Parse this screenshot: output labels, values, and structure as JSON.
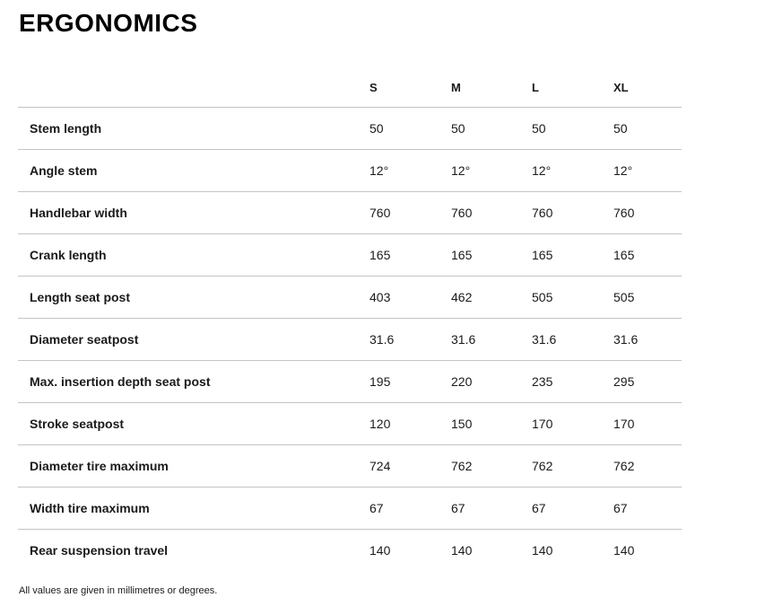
{
  "page": {
    "title": "ERGONOMICS",
    "footnote": "All values are given in millimetres or degrees."
  },
  "table": {
    "columns": [
      "S",
      "M",
      "L",
      "XL"
    ],
    "rows": [
      {
        "label": "Stem length",
        "values": [
          "50",
          "50",
          "50",
          "50"
        ]
      },
      {
        "label": "Angle stem",
        "values": [
          "12°",
          "12°",
          "12°",
          "12°"
        ]
      },
      {
        "label": "Handlebar width",
        "values": [
          "760",
          "760",
          "760",
          "760"
        ]
      },
      {
        "label": "Crank length",
        "values": [
          "165",
          "165",
          "165",
          "165"
        ]
      },
      {
        "label": "Length seat post",
        "values": [
          "403",
          "462",
          "505",
          "505"
        ]
      },
      {
        "label": "Diameter seatpost",
        "values": [
          "31.6",
          "31.6",
          "31.6",
          "31.6"
        ]
      },
      {
        "label": "Max. insertion depth seat post",
        "values": [
          "195",
          "220",
          "235",
          "295"
        ]
      },
      {
        "label": "Stroke seatpost",
        "values": [
          "120",
          "150",
          "170",
          "170"
        ]
      },
      {
        "label": "Diameter tire maximum",
        "values": [
          "724",
          "762",
          "762",
          "762"
        ]
      },
      {
        "label": "Width tire maximum",
        "values": [
          "67",
          "67",
          "67",
          "67"
        ]
      },
      {
        "label": "Rear suspension travel",
        "values": [
          "140",
          "140",
          "140",
          "140"
        ]
      }
    ]
  },
  "colors": {
    "background": "#ffffff",
    "text": "#1a1a1a",
    "divider": "#c4c4c4"
  }
}
